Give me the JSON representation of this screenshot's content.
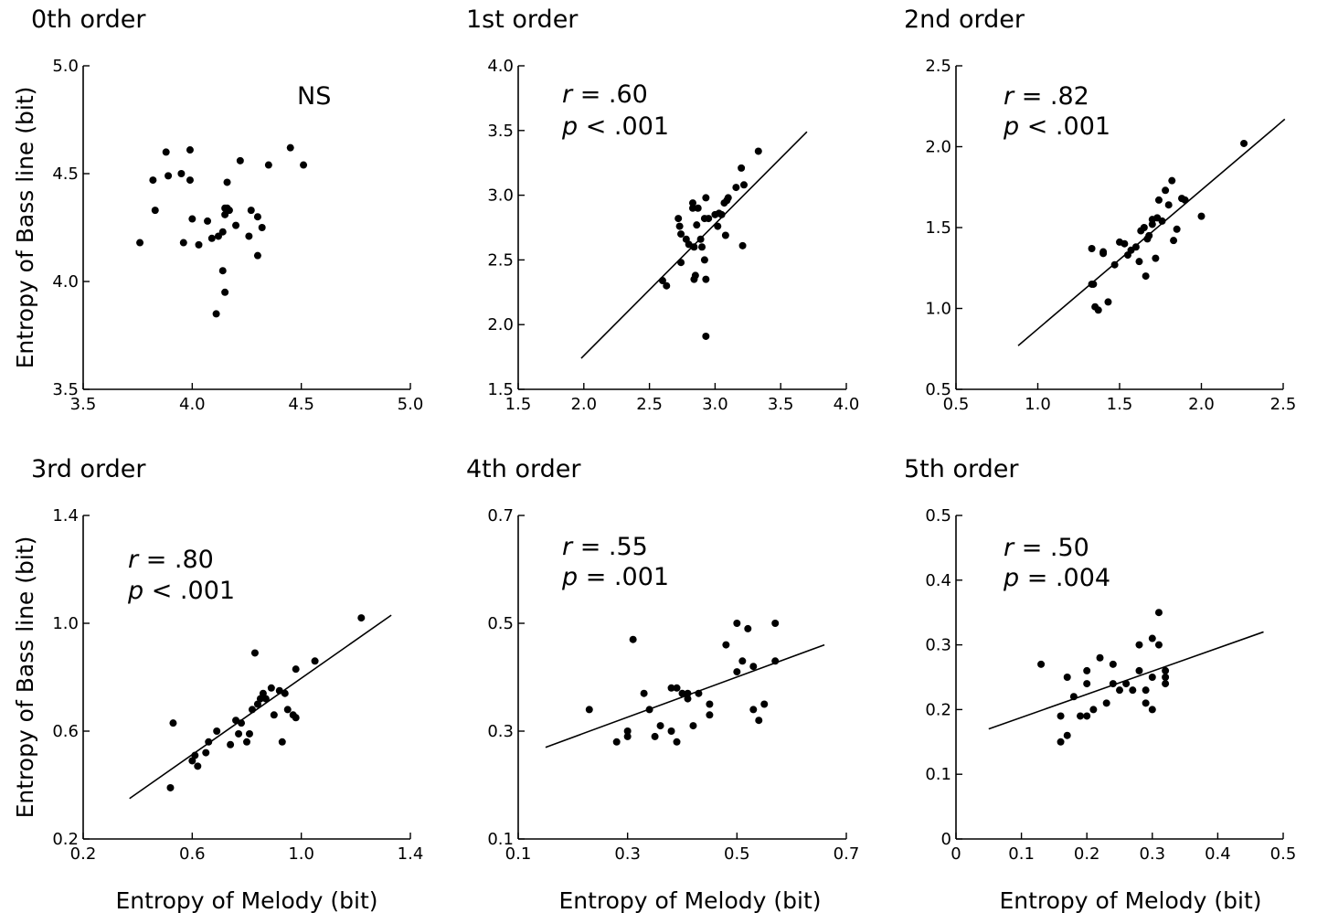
{
  "ylabel": "Entropy of Bass line (bit)",
  "xlabel": "Entropy of Melody (bit)",
  "chart_data": [
    {
      "type": "scatter",
      "title": "0th order",
      "stats": {
        "r": "",
        "p": "",
        "ns": "NS"
      },
      "xlim": [
        3.5,
        5.0
      ],
      "ylim": [
        3.5,
        5.0
      ],
      "xticks": [
        "3.5",
        "4.0",
        "4.5",
        "5.0"
      ],
      "yticks": [
        "3.5",
        "4.0",
        "4.5",
        "5.0"
      ],
      "x": [
        3.76,
        3.83,
        3.82,
        3.88,
        3.89,
        3.95,
        3.96,
        3.99,
        3.99,
        4.0,
        4.03,
        4.07,
        4.09,
        4.12,
        4.14,
        4.14,
        4.15,
        4.15,
        4.16,
        4.17,
        4.16,
        4.2,
        4.22,
        4.26,
        4.27,
        4.3,
        4.3,
        4.32,
        4.35,
        4.45,
        4.51,
        4.15,
        4.11
      ],
      "y": [
        4.18,
        4.33,
        4.47,
        4.6,
        4.49,
        4.5,
        4.18,
        4.61,
        4.47,
        4.29,
        4.17,
        4.28,
        4.2,
        4.21,
        4.05,
        4.23,
        4.34,
        4.31,
        4.34,
        4.33,
        4.46,
        4.26,
        4.56,
        4.21,
        4.33,
        4.3,
        4.12,
        4.25,
        4.54,
        4.62,
        4.54,
        3.95,
        3.85
      ],
      "fit": null
    },
    {
      "type": "scatter",
      "title": "1st order",
      "stats": {
        "r": ".60",
        "p": "< .001",
        "ns": ""
      },
      "xlim": [
        1.5,
        4.0
      ],
      "ylim": [
        1.5,
        4.0
      ],
      "xticks": [
        "1.5",
        "2.0",
        "2.5",
        "3.0",
        "3.5",
        "4.0"
      ],
      "yticks": [
        "1.5",
        "2.0",
        "2.5",
        "3.0",
        "3.5",
        "4.0"
      ],
      "x": [
        2.6,
        2.63,
        2.72,
        2.73,
        2.74,
        2.74,
        2.78,
        2.8,
        2.83,
        2.83,
        2.84,
        2.84,
        2.85,
        2.86,
        2.87,
        2.89,
        2.9,
        2.92,
        2.92,
        2.93,
        2.93,
        2.95,
        3.0,
        3.02,
        3.03,
        3.05,
        3.07,
        3.08,
        3.09,
        3.1,
        3.16,
        3.2,
        3.21,
        3.22,
        3.33,
        2.93
      ],
      "y": [
        2.34,
        2.3,
        2.82,
        2.76,
        2.7,
        2.48,
        2.66,
        2.62,
        2.9,
        2.94,
        2.6,
        2.35,
        2.38,
        2.77,
        2.9,
        2.66,
        2.6,
        2.5,
        2.82,
        2.98,
        2.35,
        2.82,
        2.85,
        2.76,
        2.86,
        2.85,
        2.94,
        2.69,
        2.96,
        2.98,
        3.06,
        3.21,
        2.61,
        3.08,
        3.34,
        1.91
      ],
      "fit": [
        [
          1.98,
          1.74
        ],
        [
          3.7,
          3.49
        ]
      ]
    },
    {
      "type": "scatter",
      "title": "2nd order",
      "stats": {
        "r": ".82",
        "p": "< .001",
        "ns": ""
      },
      "xlim": [
        0.5,
        2.5
      ],
      "ylim": [
        0.5,
        2.5
      ],
      "xticks": [
        "0.5",
        "1.0",
        "1.5",
        "2.0",
        "2.5"
      ],
      "yticks": [
        "0.5",
        "1.0",
        "1.5",
        "2.0",
        "2.5"
      ],
      "x": [
        1.33,
        1.33,
        1.35,
        1.37,
        1.4,
        1.4,
        1.43,
        1.47,
        1.5,
        1.53,
        1.55,
        1.57,
        1.6,
        1.62,
        1.63,
        1.65,
        1.66,
        1.67,
        1.68,
        1.7,
        1.7,
        1.72,
        1.73,
        1.74,
        1.76,
        1.78,
        1.8,
        1.82,
        1.83,
        1.85,
        1.88,
        1.9,
        2.0,
        2.26,
        1.34
      ],
      "y": [
        1.37,
        1.15,
        1.01,
        0.99,
        1.35,
        1.34,
        1.04,
        1.27,
        1.41,
        1.4,
        1.33,
        1.36,
        1.38,
        1.29,
        1.48,
        1.5,
        1.2,
        1.43,
        1.45,
        1.52,
        1.55,
        1.31,
        1.56,
        1.67,
        1.54,
        1.73,
        1.64,
        1.79,
        1.42,
        1.49,
        1.68,
        1.67,
        1.57,
        2.02,
        1.15
      ],
      "fit": [
        [
          0.88,
          0.77
        ],
        [
          2.51,
          2.17
        ]
      ]
    },
    {
      "type": "scatter",
      "title": "3rd order",
      "stats": {
        "r": ".80",
        "p": "< .001",
        "ns": ""
      },
      "xlim": [
        0.2,
        1.4
      ],
      "ylim": [
        0.2,
        1.4
      ],
      "xticks": [
        "0.2",
        "0.6",
        "1.0",
        "1.4"
      ],
      "yticks": [
        "0.2",
        "0.6",
        "1.0",
        "1.4"
      ],
      "x": [
        0.52,
        0.53,
        0.6,
        0.61,
        0.62,
        0.65,
        0.66,
        0.69,
        0.74,
        0.76,
        0.77,
        0.78,
        0.8,
        0.81,
        0.82,
        0.83,
        0.84,
        0.85,
        0.86,
        0.87,
        0.89,
        0.9,
        0.92,
        0.93,
        0.94,
        0.95,
        0.97,
        0.98,
        0.98,
        1.05,
        1.22
      ],
      "y": [
        0.39,
        0.63,
        0.49,
        0.51,
        0.47,
        0.52,
        0.56,
        0.6,
        0.55,
        0.64,
        0.59,
        0.63,
        0.56,
        0.59,
        0.68,
        0.89,
        0.7,
        0.72,
        0.74,
        0.72,
        0.76,
        0.66,
        0.75,
        0.56,
        0.74,
        0.68,
        0.66,
        0.83,
        0.65,
        0.86,
        1.02
      ],
      "fit": [
        [
          0.37,
          0.35
        ],
        [
          1.33,
          1.03
        ]
      ]
    },
    {
      "type": "scatter",
      "title": "4th order",
      "stats": {
        "r": ".55",
        "p": "= .001",
        "ns": ""
      },
      "xlim": [
        0.1,
        0.7
      ],
      "ylim": [
        0.1,
        0.7
      ],
      "xticks": [
        "0.1",
        "0.3",
        "0.5",
        "0.7"
      ],
      "yticks": [
        "0.1",
        "0.3",
        "0.5",
        "0.7"
      ],
      "x": [
        0.23,
        0.28,
        0.3,
        0.3,
        0.31,
        0.33,
        0.34,
        0.35,
        0.36,
        0.38,
        0.38,
        0.39,
        0.39,
        0.4,
        0.41,
        0.41,
        0.42,
        0.43,
        0.45,
        0.45,
        0.48,
        0.5,
        0.5,
        0.51,
        0.52,
        0.53,
        0.53,
        0.54,
        0.55,
        0.57,
        0.57
      ],
      "y": [
        0.34,
        0.28,
        0.29,
        0.3,
        0.47,
        0.37,
        0.34,
        0.29,
        0.31,
        0.38,
        0.3,
        0.28,
        0.38,
        0.37,
        0.36,
        0.37,
        0.31,
        0.37,
        0.35,
        0.33,
        0.46,
        0.5,
        0.41,
        0.43,
        0.49,
        0.42,
        0.34,
        0.32,
        0.35,
        0.5,
        0.43
      ],
      "fit": [
        [
          0.15,
          0.27
        ],
        [
          0.66,
          0.46
        ]
      ]
    },
    {
      "type": "scatter",
      "title": "5th order",
      "stats": {
        "r": ".50",
        "p": "= .004",
        "ns": ""
      },
      "xlim": [
        0,
        0.5
      ],
      "ylim": [
        0,
        0.5
      ],
      "xticks": [
        "0",
        "0.1",
        "0.2",
        "0.3",
        "0.4",
        "0.5"
      ],
      "yticks": [
        "0",
        "0.1",
        "0.2",
        "0.3",
        "0.4",
        "0.5"
      ],
      "x": [
        0.13,
        0.16,
        0.16,
        0.17,
        0.17,
        0.18,
        0.19,
        0.2,
        0.2,
        0.2,
        0.21,
        0.22,
        0.23,
        0.24,
        0.24,
        0.25,
        0.26,
        0.27,
        0.28,
        0.28,
        0.29,
        0.29,
        0.3,
        0.3,
        0.3,
        0.31,
        0.31,
        0.32,
        0.32,
        0.32
      ],
      "y": [
        0.27,
        0.15,
        0.19,
        0.25,
        0.16,
        0.22,
        0.19,
        0.24,
        0.19,
        0.26,
        0.2,
        0.28,
        0.21,
        0.24,
        0.27,
        0.23,
        0.24,
        0.23,
        0.26,
        0.3,
        0.23,
        0.21,
        0.31,
        0.25,
        0.2,
        0.3,
        0.35,
        0.24,
        0.26,
        0.25
      ],
      "fit": [
        [
          0.05,
          0.17
        ],
        [
          0.47,
          0.32
        ]
      ]
    }
  ]
}
